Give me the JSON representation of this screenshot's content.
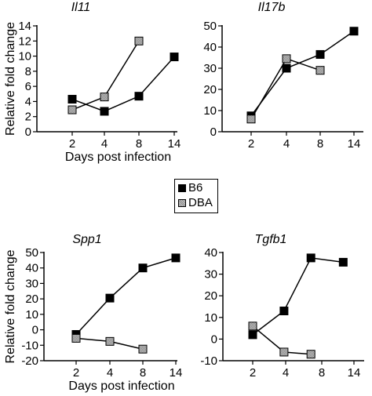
{
  "legend": {
    "items": [
      {
        "label": "B6",
        "color": "#000000"
      },
      {
        "label": "DBA",
        "color": "#a0a0a0"
      }
    ]
  },
  "chart_data": [
    {
      "type": "line",
      "title": "Il11",
      "xlabel": "Days post infection",
      "ylabel": "Relative fold change",
      "categories": [
        "2",
        "4",
        "8",
        "14"
      ],
      "ylim": [
        0,
        14
      ],
      "yticks": [
        "0",
        "2",
        "4",
        "6",
        "8",
        "10",
        "12",
        "14"
      ],
      "series": [
        {
          "name": "B6",
          "points": [
            [
              2,
              4.3
            ],
            [
              4,
              2.7
            ],
            [
              8,
              4.7
            ],
            [
              14,
              9.9
            ]
          ]
        },
        {
          "name": "DBA",
          "points": [
            [
              2,
              2.9
            ],
            [
              4,
              4.6
            ],
            [
              8,
              12.0
            ]
          ]
        }
      ]
    },
    {
      "type": "line",
      "title": "Il17b",
      "xlabel": "",
      "ylabel": "",
      "categories": [
        "2",
        "4",
        "8",
        "14"
      ],
      "ylim": [
        0,
        50
      ],
      "yticks": [
        "0",
        "10",
        "20",
        "30",
        "40",
        "50"
      ],
      "series": [
        {
          "name": "B6",
          "points": [
            [
              2,
              7.5
            ],
            [
              4,
              30.0
            ],
            [
              8,
              36.5
            ],
            [
              14,
              47.5
            ]
          ]
        },
        {
          "name": "DBA",
          "points": [
            [
              2,
              6.0
            ],
            [
              4,
              34.5
            ],
            [
              8,
              29.0
            ]
          ]
        }
      ]
    },
    {
      "type": "line",
      "title": "Spp1",
      "xlabel": "Days post infection",
      "ylabel": "Relative fold change",
      "categories": [
        "2",
        "4",
        "8",
        "14"
      ],
      "ylim": [
        -20,
        50
      ],
      "yticks": [
        "50",
        "40",
        "30",
        "20",
        "10",
        "0",
        "-10",
        "-20"
      ],
      "series": [
        {
          "name": "B6",
          "points": [
            [
              2,
              -3
            ],
            [
              4,
              20.5
            ],
            [
              8,
              40.0
            ],
            [
              14,
              46.5
            ]
          ]
        },
        {
          "name": "DBA",
          "points": [
            [
              2,
              -5.5
            ],
            [
              4,
              -7.5
            ],
            [
              8,
              -12.5
            ]
          ]
        }
      ]
    },
    {
      "type": "line",
      "title": "Tgfb1",
      "xlabel": "",
      "ylabel": "",
      "categories": [
        "2",
        "4",
        "8",
        "14"
      ],
      "ylim": [
        -10,
        40
      ],
      "yticks": [
        "40",
        "30",
        "20",
        "10",
        "0",
        "-10"
      ],
      "series": [
        {
          "name": "B6",
          "points": [
            [
              1.9,
              2.0
            ],
            [
              3.9,
              13.0
            ],
            [
              6.8,
              37.5
            ],
            [
              12,
              35.5
            ]
          ]
        },
        {
          "name": "DBA",
          "points": [
            [
              1.9,
              6.0
            ],
            [
              3.9,
              -6.0
            ],
            [
              6.8,
              -7.0
            ]
          ]
        }
      ]
    }
  ]
}
